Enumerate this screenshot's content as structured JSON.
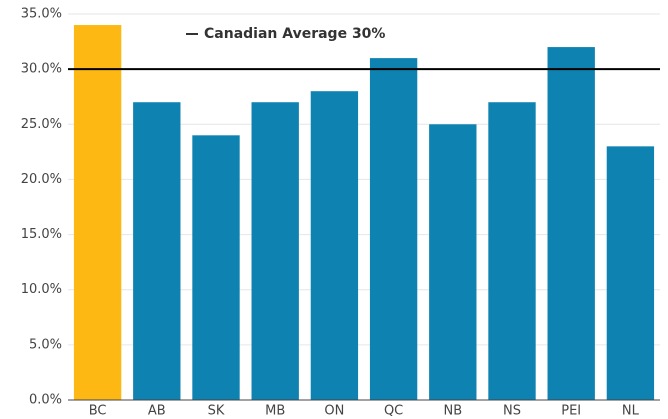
{
  "chart_data": {
    "type": "bar",
    "categories": [
      "BC",
      "AB",
      "SK",
      "MB",
      "ON",
      "QC",
      "NB",
      "NS",
      "PEI",
      "NL"
    ],
    "values": [
      34,
      27,
      24,
      27,
      28,
      31,
      25,
      27,
      32,
      23
    ],
    "colors": [
      "#fdb813",
      "#0e82b0",
      "#0e82b0",
      "#0e82b0",
      "#0e82b0",
      "#0e82b0",
      "#0e82b0",
      "#0e82b0",
      "#0e82b0",
      "#0e82b0"
    ],
    "ylim": [
      0,
      35
    ],
    "yticks": [
      {
        "value": 0,
        "label": "0.0%"
      },
      {
        "value": 5,
        "label": "5.0%"
      },
      {
        "value": 10,
        "label": "10.0%"
      },
      {
        "value": 15,
        "label": "15.0%"
      },
      {
        "value": 20,
        "label": "20.0%"
      },
      {
        "value": 25,
        "label": "25.0%"
      },
      {
        "value": 30,
        "label": "30.0%"
      },
      {
        "value": 35,
        "label": "35.0%"
      }
    ],
    "grid": true,
    "reference_line": {
      "value": 30,
      "label": "Canadian Average 30%",
      "color": "#000000"
    }
  }
}
